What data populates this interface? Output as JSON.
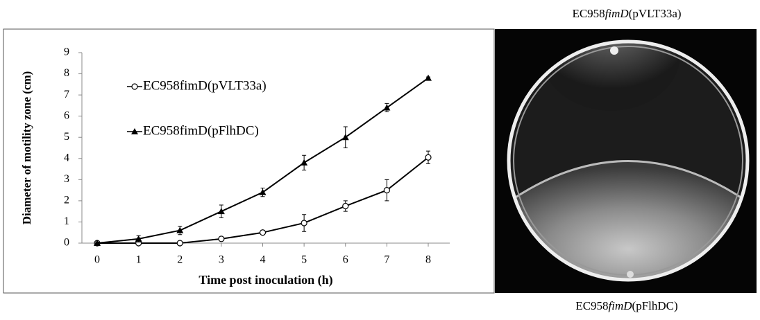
{
  "chart_data": {
    "type": "line",
    "ylabel": "Diameter of motility zone (cm)",
    "xlabel": "Time post inoculation (h)",
    "x": [
      0,
      1,
      2,
      3,
      4,
      5,
      6,
      7,
      8
    ],
    "xlim": [
      -0.4,
      8.5
    ],
    "xticks": [
      0,
      1,
      2,
      3,
      4,
      5,
      6,
      7,
      8
    ],
    "ylim": [
      0,
      9
    ],
    "yticks": [
      0,
      1,
      2,
      3,
      4,
      5,
      6,
      7,
      8,
      9
    ],
    "series": [
      {
        "name": "EC958fimD(pVLT33a)",
        "color": "#000000",
        "marker": "circle",
        "values": [
          0,
          0,
          0,
          0.2,
          0.5,
          0.95,
          1.75,
          2.5,
          4.05
        ],
        "errors": [
          0,
          0,
          0,
          0.05,
          0.05,
          0.4,
          0.25,
          0.5,
          0.3
        ]
      },
      {
        "name": "EC958fimD(pFlhDC)",
        "color": "#000000",
        "marker": "triangle",
        "values": [
          0,
          0.2,
          0.6,
          1.5,
          2.4,
          3.8,
          5.0,
          6.4,
          7.8
        ],
        "errors": [
          0.05,
          0.15,
          0.2,
          0.3,
          0.2,
          0.35,
          0.5,
          0.2,
          0.05
        ]
      }
    ]
  },
  "photo": {
    "top_label": {
      "prefix": "EC958",
      "gene": "fimD",
      "suffix": "(pVLT33a)"
    },
    "bottom_label": {
      "prefix": "EC958",
      "gene": "fimD",
      "suffix": "(pFlhDC)"
    }
  }
}
